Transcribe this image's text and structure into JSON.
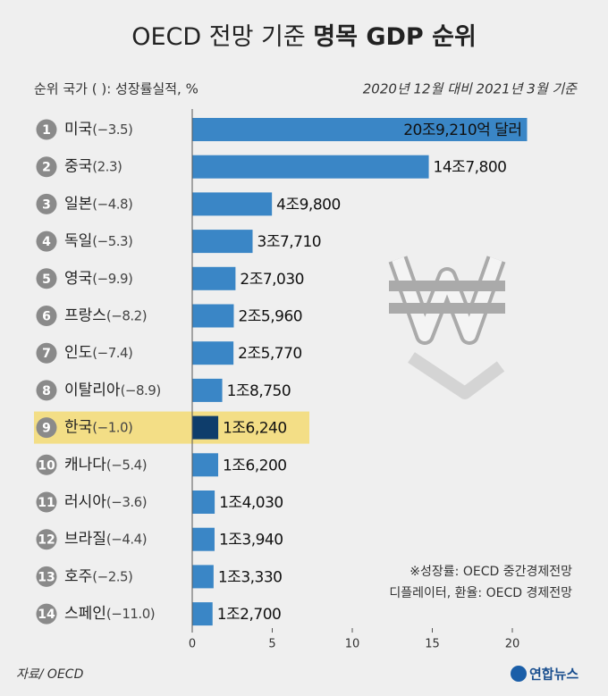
{
  "chart_data": {
    "type": "bar",
    "orientation": "horizontal",
    "title": "OECD 전망 기준",
    "title_bold": "명목 GDP 순위",
    "subtitle": "2020년 12월 대비 2021년 3월 기준",
    "header": "순위 국가 ( ): 성장률실적, %",
    "ranks": [
      1,
      2,
      3,
      4,
      5,
      6,
      7,
      8,
      9,
      10,
      11,
      12,
      13,
      14
    ],
    "categories": [
      "미국",
      "중국",
      "일본",
      "독일",
      "영국",
      "프랑스",
      "인도",
      "이탈리아",
      "한국",
      "캐나다",
      "러시아",
      "브라질",
      "호주",
      "스페인"
    ],
    "growth_labels": [
      "(−3.5)",
      "(2.3)",
      "(−4.8)",
      "(−5.3)",
      "(−9.9)",
      "(−8.2)",
      "(−7.4)",
      "(−8.9)",
      "(−1.0)",
      "(−5.4)",
      "(−3.6)",
      "(−4.4)",
      "(−2.5)",
      "(−11.0)"
    ],
    "values": [
      20.921,
      14.78,
      4.98,
      3.771,
      2.703,
      2.596,
      2.577,
      1.875,
      1.624,
      1.62,
      1.403,
      1.394,
      1.333,
      1.27
    ],
    "value_labels": [
      "20조9,210억 달러",
      "14조7,800",
      "4조9,800",
      "3조7,710",
      "2조7,030",
      "2조5,960",
      "2조5,770",
      "1조8,750",
      "1조6,240",
      "1조6,200",
      "1조4,030",
      "1조3,940",
      "1조3,330",
      "1조2,700"
    ],
    "color": "#3a86c6",
    "highlight_index": 8,
    "highlight_color": "#0e3d6b",
    "highlight_background": "#f3de86",
    "xlim": [
      0,
      20
    ],
    "xticks": [
      0,
      5,
      10,
      15,
      20
    ],
    "notes": [
      "※성장률: OECD 중간경제전망",
      "디플레이터, 환율: OECD 경제전망"
    ],
    "source": "자료/ OECD",
    "logo": "연합뉴스"
  }
}
